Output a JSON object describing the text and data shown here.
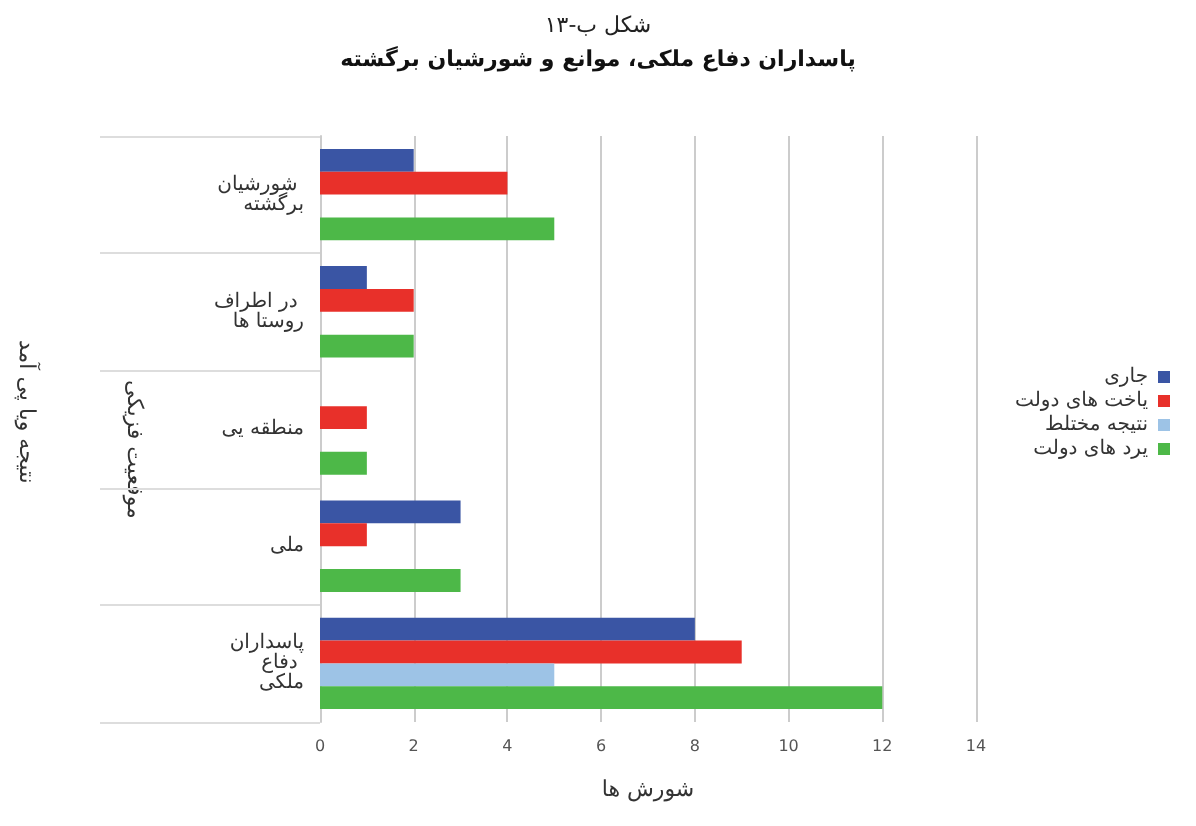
{
  "chart_data": {
    "type": "bar",
    "orientation": "horizontal",
    "title": "شکل ب-۱۳",
    "subtitle": "پاسداران دفاع ملکی، موانع و شورشیان برگشته",
    "xlabel": "شورش ها",
    "annotations": [
      "نتیجه ویا پی آمد",
      "موقعیت فزیکی"
    ],
    "categories": [
      "شورشیان برگشته",
      "در اطراف روستا ها",
      "منطقه یی",
      "ملی",
      "پاسداران دفاع ملکی"
    ],
    "series": [
      {
        "name": "جاری",
        "color": "#3a55a4",
        "values": [
          2,
          1,
          null,
          3,
          8
        ]
      },
      {
        "name": "یاخت های دولت",
        "color": "#e8302a",
        "values": [
          4,
          2,
          1,
          1,
          9
        ]
      },
      {
        "name": "نتیجه مختلط",
        "color": "#9dc3e6",
        "values": [
          null,
          null,
          null,
          null,
          5
        ]
      },
      {
        "name": "یرد های دولت",
        "color": "#4db848",
        "values": [
          5,
          2,
          1,
          3,
          12
        ]
      }
    ],
    "xlim": [
      0,
      14
    ],
    "xticks": [
      0,
      2,
      4,
      6,
      8,
      10,
      12,
      14
    ],
    "grid": "x",
    "legend": "right"
  }
}
